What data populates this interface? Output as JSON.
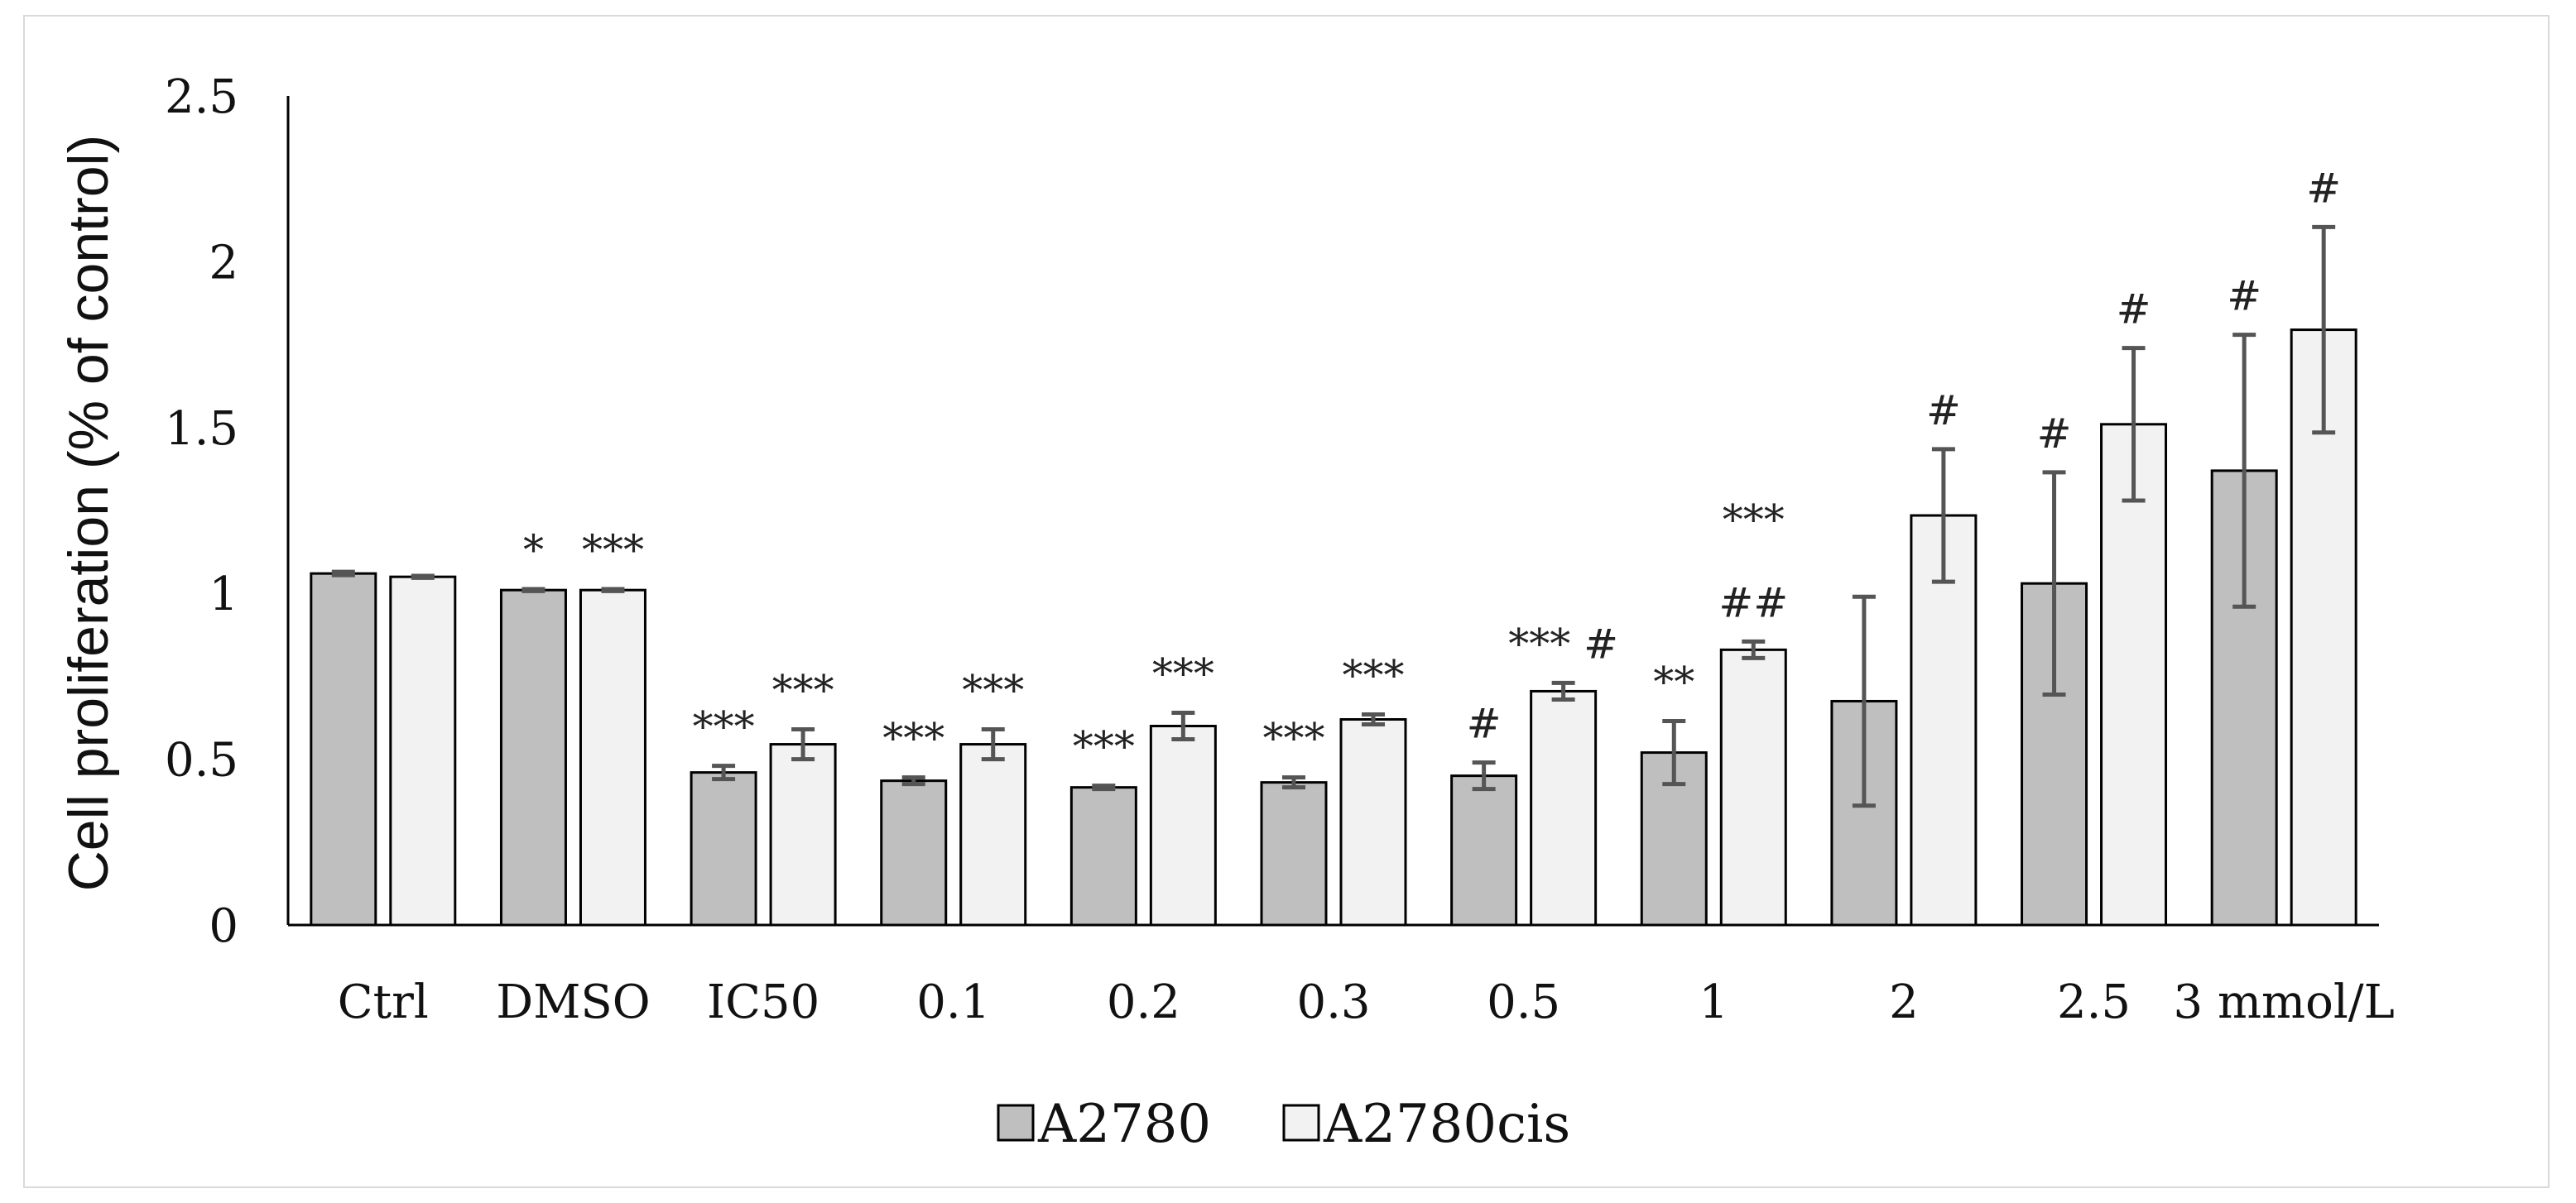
{
  "chart_data": {
    "type": "bar",
    "title": "",
    "xlabel": "",
    "ylabel": "Cell proliferation (% of control)",
    "ylim": [
      0,
      2.5
    ],
    "yticks": [
      "0",
      "0.5",
      "1",
      "1.5",
      "2",
      "2.5"
    ],
    "ytick_values": [
      0,
      0.5,
      1,
      1.5,
      2,
      2.5
    ],
    "categories": [
      "Ctrl",
      "DMSO",
      "IC50",
      "0.1",
      "0.2",
      "0.3",
      "0.5",
      "1",
      "2",
      "2.5",
      "3 mmol/L"
    ],
    "series": [
      {
        "name": "A2780",
        "color": "#bfbfbf",
        "values": [
          1.06,
          1.01,
          0.46,
          0.435,
          0.415,
          0.43,
          0.45,
          0.52,
          0.675,
          1.03,
          1.37
        ],
        "errors": [
          0.005,
          0.003,
          0.02,
          0.01,
          0.005,
          0.015,
          0.04,
          0.095,
          0.315,
          0.335,
          0.41
        ],
        "significance": [
          "",
          "*",
          "***",
          "***",
          "***",
          "***",
          "#",
          "**",
          "",
          "#",
          "#"
        ]
      },
      {
        "name": "A2780cis",
        "color": "#f2f2f2",
        "values": [
          1.05,
          1.01,
          0.545,
          0.545,
          0.6,
          0.62,
          0.705,
          0.83,
          1.235,
          1.51,
          1.795
        ],
        "errors": [
          0.003,
          0.003,
          0.045,
          0.045,
          0.04,
          0.015,
          0.025,
          0.025,
          0.2,
          0.23,
          0.31
        ],
        "significance": [
          "",
          "***",
          "***",
          "***",
          "***",
          "***",
          "*** #",
          "***|##",
          "#",
          "#",
          "#"
        ]
      }
    ],
    "legend": [
      "A2780",
      "A2780cis"
    ],
    "legend_position": "bottom-center",
    "grid": false
  }
}
